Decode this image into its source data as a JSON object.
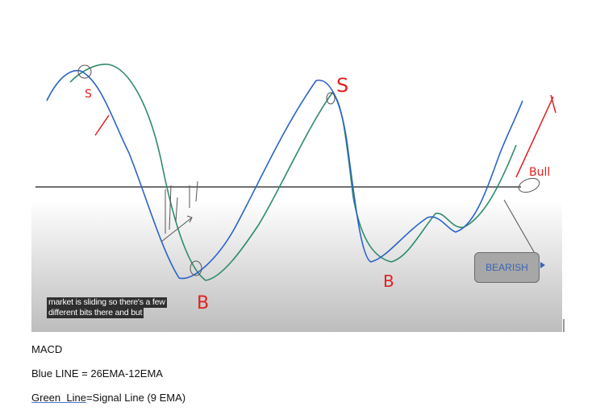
{
  "diagram": {
    "annotations": {
      "sell_1": "S",
      "sell_2": "S",
      "buy_1": "B",
      "buy_2": "B",
      "bull": "Bull"
    },
    "caption_lines": [
      "market is sliding so there's a few",
      "different bits there and but"
    ],
    "bearish_label": "BEARISH",
    "colors": {
      "blue_line": "#2a62c9",
      "green_line": "#2e8b6a",
      "annotation_red": "#e02020",
      "zero_line": "#404040"
    }
  },
  "document": {
    "heading": "MACD",
    "blue_line_label": "Blue LINE = 26EMA-12EMA",
    "green_line_term": "Green  Line",
    "green_line_rest": "=Signal Line (9 EMA)"
  }
}
